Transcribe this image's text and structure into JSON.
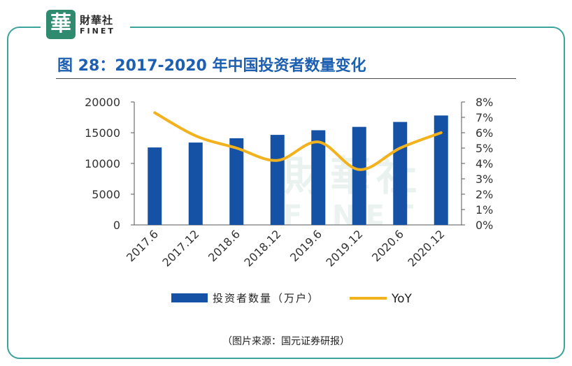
{
  "header": {
    "logo_mark": "華",
    "logo_cn": "財華社",
    "logo_en": "FINET",
    "title": "图 28：2017-2020 年中国投资者数量变化"
  },
  "watermark": {
    "cn": "財華社",
    "en": "FINET"
  },
  "chart_data": {
    "type": "bar+line",
    "title": "",
    "categories": [
      "2017.6",
      "2017.12",
      "2018.6",
      "2018.12",
      "2019.6",
      "2019.12",
      "2020.6",
      "2020.12"
    ],
    "series": [
      {
        "name": "投资者数量（万户）",
        "type": "bar",
        "axis": "left",
        "color": "#1552a6",
        "values": [
          12600,
          13400,
          14100,
          14650,
          15400,
          15950,
          16750,
          17800
        ]
      },
      {
        "name": "YoY",
        "type": "line",
        "axis": "right",
        "color": "#f2b21d",
        "values": [
          7.3,
          5.8,
          5.0,
          4.2,
          5.4,
          3.6,
          5.0,
          6.0
        ]
      }
    ],
    "y_left": {
      "min": 0,
      "max": 20000,
      "ticks": [
        0,
        5000,
        10000,
        15000,
        20000
      ]
    },
    "y_right": {
      "min": 0,
      "max": 8,
      "ticks": [
        "0%",
        "1%",
        "2%",
        "3%",
        "4%",
        "5%",
        "6%",
        "7%",
        "8%"
      ]
    },
    "grid": false,
    "legend_position": "bottom"
  },
  "footer": {
    "source": "（图片来源：国元证券研报）"
  }
}
